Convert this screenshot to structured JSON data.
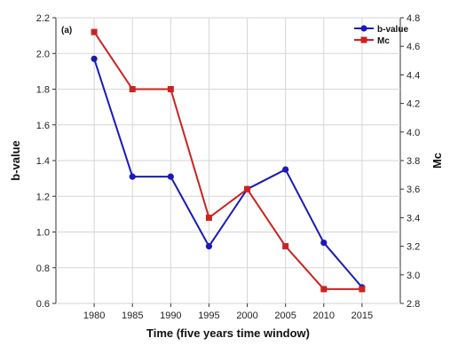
{
  "chart_data": {
    "type": "line",
    "panel_label": "(a)",
    "x": [
      1980,
      1985,
      1990,
      1995,
      2000,
      2005,
      2010,
      2015
    ],
    "x_tick_labels": [
      "1980",
      "1985",
      "1990",
      "1995",
      "2000",
      "2005",
      "2010",
      "2015"
    ],
    "xlabel": "Time (five years time window)",
    "xlim": [
      1975,
      2020
    ],
    "ylabel_left": "b-value",
    "ylim_left": [
      0.6,
      2.2
    ],
    "yticks_left": [
      "0.6",
      "0.8",
      "1.0",
      "1.2",
      "1.4",
      "1.6",
      "1.8",
      "2.0",
      "2.2"
    ],
    "ylabel_right": "Mc",
    "ylim_right": [
      2.8,
      4.8
    ],
    "yticks_right": [
      "2.8",
      "3.0",
      "3.2",
      "3.4",
      "3.6",
      "3.8",
      "4.0",
      "4.2",
      "4.4",
      "4.6",
      "4.8"
    ],
    "grid": true,
    "legend_position": "top-right",
    "series": [
      {
        "name": "b-value",
        "axis": "left",
        "marker": "circle",
        "color": "#1a1ab8",
        "values": [
          1.97,
          1.31,
          1.31,
          0.92,
          1.24,
          1.35,
          0.94,
          0.69
        ]
      },
      {
        "name": "Mc",
        "axis": "right",
        "marker": "square",
        "color": "#cc2222",
        "values": [
          4.7,
          4.3,
          4.3,
          3.4,
          3.6,
          3.2,
          2.9,
          2.9
        ]
      }
    ]
  }
}
